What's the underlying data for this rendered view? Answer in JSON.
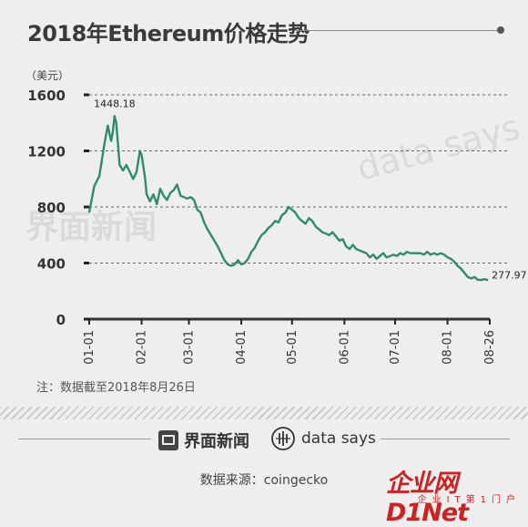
{
  "header": {
    "title": "2018年Ethereum价格走势"
  },
  "chart_data": {
    "type": "line",
    "ylabel": "（美元）",
    "ylim": [
      0,
      1600
    ],
    "yticks": [
      0,
      400,
      800,
      1200,
      1600
    ],
    "xticks": [
      "01-01",
      "02-01",
      "03-01",
      "04-01",
      "05-01",
      "06-01",
      "07-01",
      "08-01",
      "08-26"
    ],
    "grid": "horizontal dashed",
    "color": "#2e8b6e",
    "series": [
      {
        "values": [
          [
            0,
            760
          ],
          [
            3,
            950
          ],
          [
            6,
            1020
          ],
          [
            9,
            1250
          ],
          [
            11,
            1380
          ],
          [
            13,
            1270
          ],
          [
            14,
            1340
          ],
          [
            15,
            1448.18
          ],
          [
            16,
            1400
          ],
          [
            18,
            1100
          ],
          [
            20,
            1060
          ],
          [
            22,
            1100
          ],
          [
            24,
            1050
          ],
          [
            26,
            1000
          ],
          [
            28,
            1050
          ],
          [
            30,
            1200
          ],
          [
            31,
            1170
          ],
          [
            33,
            1010
          ],
          [
            34,
            890
          ],
          [
            36,
            840
          ],
          [
            38,
            890
          ],
          [
            40,
            820
          ],
          [
            42,
            930
          ],
          [
            44,
            880
          ],
          [
            46,
            850
          ],
          [
            48,
            900
          ],
          [
            50,
            920
          ],
          [
            52,
            960
          ],
          [
            54,
            880
          ],
          [
            56,
            870
          ],
          [
            58,
            860
          ],
          [
            60,
            870
          ],
          [
            62,
            850
          ],
          [
            64,
            780
          ],
          [
            66,
            760
          ],
          [
            68,
            690
          ],
          [
            70,
            640
          ],
          [
            72,
            600
          ],
          [
            74,
            560
          ],
          [
            76,
            520
          ],
          [
            78,
            470
          ],
          [
            80,
            420
          ],
          [
            82,
            390
          ],
          [
            84,
            380
          ],
          [
            86,
            390
          ],
          [
            88,
            420
          ],
          [
            90,
            390
          ],
          [
            92,
            400
          ],
          [
            94,
            430
          ],
          [
            96,
            480
          ],
          [
            98,
            510
          ],
          [
            100,
            560
          ],
          [
            102,
            600
          ],
          [
            104,
            620
          ],
          [
            106,
            650
          ],
          [
            108,
            670
          ],
          [
            110,
            700
          ],
          [
            112,
            690
          ],
          [
            114,
            740
          ],
          [
            116,
            760
          ],
          [
            118,
            800
          ],
          [
            120,
            780
          ],
          [
            122,
            760
          ],
          [
            124,
            720
          ],
          [
            126,
            700
          ],
          [
            128,
            680
          ],
          [
            130,
            720
          ],
          [
            132,
            700
          ],
          [
            134,
            660
          ],
          [
            136,
            640
          ],
          [
            138,
            620
          ],
          [
            140,
            610
          ],
          [
            142,
            600
          ],
          [
            144,
            620
          ],
          [
            146,
            590
          ],
          [
            148,
            560
          ],
          [
            150,
            570
          ],
          [
            152,
            520
          ],
          [
            154,
            500
          ],
          [
            156,
            530
          ],
          [
            158,
            500
          ],
          [
            160,
            490
          ],
          [
            162,
            480
          ],
          [
            164,
            470
          ],
          [
            166,
            440
          ],
          [
            168,
            460
          ],
          [
            170,
            430
          ],
          [
            172,
            450
          ],
          [
            174,
            470
          ],
          [
            176,
            440
          ],
          [
            178,
            450
          ],
          [
            180,
            460
          ],
          [
            182,
            450
          ],
          [
            184,
            470
          ],
          [
            186,
            460
          ],
          [
            188,
            480
          ],
          [
            190,
            470
          ],
          [
            192,
            470
          ],
          [
            194,
            470
          ],
          [
            196,
            470
          ],
          [
            198,
            460
          ],
          [
            200,
            480
          ],
          [
            202,
            460
          ],
          [
            204,
            470
          ],
          [
            206,
            460
          ],
          [
            208,
            470
          ],
          [
            210,
            460
          ],
          [
            212,
            440
          ],
          [
            214,
            430
          ],
          [
            216,
            410
          ],
          [
            218,
            380
          ],
          [
            220,
            360
          ],
          [
            222,
            330
          ],
          [
            224,
            300
          ],
          [
            226,
            290
          ],
          [
            228,
            300
          ],
          [
            230,
            280
          ],
          [
            232,
            280
          ],
          [
            234,
            285
          ],
          [
            236,
            277.97
          ]
        ]
      }
    ],
    "annotations": [
      {
        "label": "1448.18",
        "day": 15,
        "value": 1448.18
      },
      {
        "label": "277.97",
        "day": 236,
        "value": 277.97
      }
    ]
  },
  "note": "注：数据截至2018年8月26日",
  "brands": {
    "jiemian": "界面新闻",
    "datasays": "data says"
  },
  "source": "数据来源：coingecko",
  "corner": {
    "main": "企业网D1Net",
    "sub": "企业IT第1门户"
  }
}
